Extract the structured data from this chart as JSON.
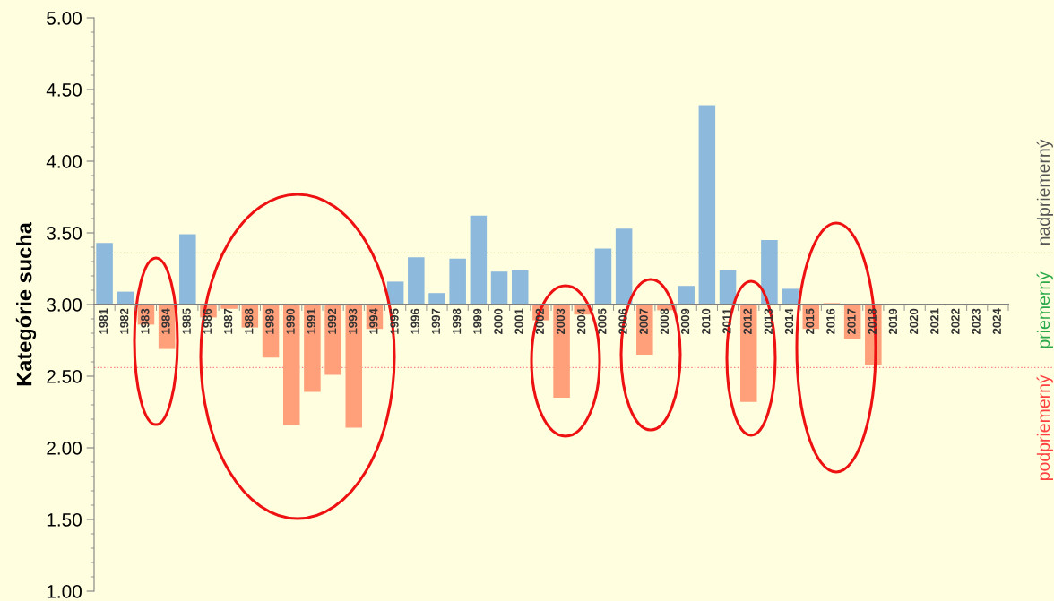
{
  "chart_data": {
    "type": "bar",
    "ylabel": "Kategórie sucha",
    "categories": [
      "1981",
      "1982",
      "1983",
      "1984",
      "1985",
      "1986",
      "1987",
      "1988",
      "1989",
      "1990",
      "1991",
      "1992",
      "1993",
      "1994",
      "1995",
      "1996",
      "1997",
      "1998",
      "1999",
      "2000",
      "2001",
      "2002",
      "2003",
      "2004",
      "2005",
      "2006",
      "2007",
      "2008",
      "2009",
      "2010",
      "2011",
      "2012",
      "2013",
      "2014",
      "2015",
      "2016",
      "2017",
      "2018",
      "2019",
      "2020",
      "2021",
      "2022",
      "2023",
      "2024"
    ],
    "values": [
      0.43,
      0.09,
      -0.14,
      -0.31,
      0.49,
      -0.09,
      -0.03,
      -0.16,
      -0.37,
      -0.84,
      -0.61,
      -0.49,
      -0.86,
      -0.17,
      0.16,
      0.33,
      0.08,
      0.32,
      0.62,
      0.23,
      0.24,
      -0.11,
      -0.65,
      -0.07,
      0.39,
      0.53,
      -0.35,
      -0.04,
      0.13,
      1.39,
      0.24,
      -0.68,
      0.45,
      0.11,
      -0.17,
      0.01,
      -0.24,
      -0.42,
      null,
      null,
      null,
      null,
      null,
      null
    ],
    "base": [
      3,
      3,
      3,
      3,
      3,
      3,
      3,
      3,
      3,
      3,
      3,
      3,
      3,
      3,
      3,
      3,
      3,
      3,
      3,
      3,
      3,
      3,
      3,
      3,
      3,
      3,
      3,
      3,
      3,
      3,
      3,
      3,
      3,
      3,
      3,
      3,
      3,
      3,
      null,
      null,
      null,
      null,
      null,
      null
    ],
    "colors": [
      "#8db9dc",
      "#8db9dc",
      "#ffa07a",
      "#ffa07a",
      "#8db9dc",
      "#ffa07a",
      "#ffa07a",
      "#ffa07a",
      "#ffa07a",
      "#ffa07a",
      "#ffa07a",
      "#ffa07a",
      "#ffa07a",
      "#ffa07a",
      "#8db9dc",
      "#8db9dc",
      "#8db9dc",
      "#8db9dc",
      "#8db9dc",
      "#8db9dc",
      "#8db9dc",
      "#ffa07a",
      "#ffa07a",
      "#ffa07a",
      "#8db9dc",
      "#8db9dc",
      "#ffa07a",
      "#ffa07a",
      "#8db9dc",
      "#8db9dc",
      "#8db9dc",
      "#ffa07a",
      "#8db9dc",
      "#8db9dc",
      "#ffa07a",
      "#ffa07a",
      "#ffa07a",
      "#ffa07a",
      null,
      null,
      null,
      null,
      null,
      null
    ],
    "ylim": [
      1,
      5
    ],
    "yticks": [
      {
        "value": 1,
        "label": "1.00"
      },
      {
        "value": 1.5,
        "label": "1.50"
      },
      {
        "value": 2,
        "label": "2.00"
      },
      {
        "value": 2.5,
        "label": "2.50"
      },
      {
        "value": 3,
        "label": "3.00"
      },
      {
        "value": 3.5,
        "label": "3.50"
      },
      {
        "value": 4,
        "label": "4.00"
      },
      {
        "value": 4.5,
        "label": "4.50"
      },
      {
        "value": 5,
        "label": "5.00"
      }
    ],
    "ref_lines": [
      {
        "axis": "y",
        "value": 3.36,
        "color": "#c8c88c",
        "line_style": "dotted"
      },
      {
        "axis": "y",
        "value": 2.56,
        "color": "#ff8080",
        "line_style": "dotted"
      }
    ],
    "annotations": [
      "nadpriemerný",
      "priemerný",
      "podpriemerný"
    ],
    "grid": false,
    "legend": false
  }
}
